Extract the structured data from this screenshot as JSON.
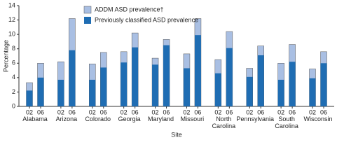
{
  "chart_data": {
    "type": "bar",
    "x_label": "Site",
    "y_label": "Percentage",
    "groups": [
      "Alabama",
      "Arizona",
      "Colorado",
      "Georgia",
      "Maryland",
      "Missouri",
      "North Carolina",
      "Pennsylvania",
      "South Carolina",
      "Wisconsin"
    ],
    "subcategories": [
      "02",
      "06"
    ],
    "series": [
      {
        "name": "ADDM ASD prevalence†",
        "color": "#a9bfe3",
        "values": [
          3.3,
          6.0,
          6.2,
          12.2,
          5.9,
          7.5,
          7.6,
          10.2,
          6.7,
          9.3,
          7.3,
          12.2,
          6.5,
          10.4,
          5.3,
          8.4,
          6.0,
          8.6,
          5.2,
          7.6
        ]
      },
      {
        "name": "Previously classified ASD prevalence",
        "color": "#1f6db3",
        "values": [
          2.2,
          4.0,
          3.7,
          7.8,
          3.7,
          5.4,
          6.1,
          8.2,
          5.8,
          8.5,
          5.3,
          9.9,
          4.6,
          8.1,
          4.1,
          7.1,
          3.7,
          6.2,
          3.9,
          6.0
        ]
      }
    ],
    "ylim": [
      0,
      14
    ],
    "yticks": [
      0,
      2,
      4,
      6,
      8,
      10,
      12,
      14
    ],
    "grid": false
  }
}
